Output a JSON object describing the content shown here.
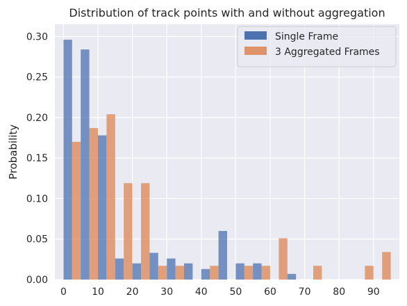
{
  "chart_data": {
    "type": "bar",
    "title": "Distribution of track points with and without aggregation",
    "xlabel": "",
    "ylabel": "Probability",
    "xlim": [
      -2.5,
      97.5
    ],
    "ylim": [
      0,
      0.315
    ],
    "x_ticks": [
      0,
      10,
      20,
      30,
      40,
      50,
      60,
      70,
      80,
      90
    ],
    "y_ticks": [
      0.0,
      0.05,
      0.1,
      0.15,
      0.2,
      0.25,
      0.3
    ],
    "y_tick_labels": [
      "0.00",
      "0.05",
      "0.10",
      "0.15",
      "0.20",
      "0.25",
      "0.30"
    ],
    "grid": true,
    "legend_position": "top-right",
    "bin_width": 5,
    "bin_starts": [
      0,
      5,
      10,
      15,
      20,
      25,
      30,
      35,
      40,
      45,
      50,
      55,
      60,
      65,
      70,
      75,
      80,
      85,
      90
    ],
    "series": [
      {
        "name": "Single Frame",
        "color": "#4c72b0",
        "values": [
          0.296,
          0.284,
          0.178,
          0.026,
          0.02,
          0.033,
          0.026,
          0.02,
          0.013,
          0.06,
          0.02,
          0.02,
          0.0,
          0.007,
          0.0,
          0.0,
          0.0,
          0.0,
          0.0
        ]
      },
      {
        "name": "3 Aggregated Frames",
        "color": "#dd8452",
        "values": [
          0.17,
          0.187,
          0.204,
          0.119,
          0.119,
          0.017,
          0.017,
          0.0,
          0.017,
          0.0,
          0.017,
          0.017,
          0.051,
          0.0,
          0.017,
          0.0,
          0.0,
          0.017,
          0.034
        ]
      }
    ]
  }
}
